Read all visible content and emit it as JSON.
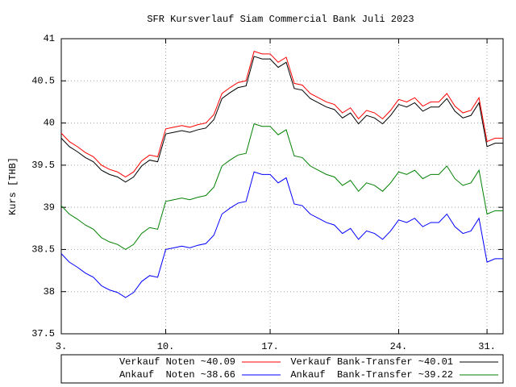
{
  "chart_data": {
    "type": "line",
    "title": "SFR Kursverlauf Siam Commercial Bank Juli 2023",
    "y_label": "Kurs [THB]",
    "x": [
      0,
      2,
      4,
      6,
      8,
      10,
      12,
      14,
      16,
      18,
      20,
      22,
      24,
      26,
      28,
      30,
      32,
      34,
      36,
      38,
      40,
      42,
      44,
      46,
      48,
      50,
      52,
      54,
      56,
      58,
      60,
      62,
      64,
      66,
      68,
      70,
      72,
      74,
      76,
      78,
      80,
      82,
      84,
      86,
      88,
      90,
      92,
      94,
      96,
      98,
      100,
      102,
      104,
      106,
      108,
      110
    ],
    "xlim": [
      0,
      110
    ],
    "xticks": [
      {
        "value": 0,
        "label": "3."
      },
      {
        "value": 26,
        "label": "10."
      },
      {
        "value": 52,
        "label": "17."
      },
      {
        "value": 84,
        "label": "24."
      },
      {
        "value": 106,
        "label": "31."
      }
    ],
    "ylim": [
      37.5,
      41
    ],
    "yticks": [
      37.5,
      38,
      38.5,
      39,
      39.5,
      40,
      40.5,
      41
    ],
    "grid": true,
    "legend": "bottom",
    "series": [
      {
        "name": "Verkauf Noten ~40.09",
        "color": "#ff0000",
        "values": [
          39.88,
          39.78,
          39.72,
          39.65,
          39.6,
          39.5,
          39.45,
          39.42,
          39.36,
          39.42,
          39.55,
          39.62,
          39.6,
          39.93,
          39.95,
          39.97,
          39.95,
          39.98,
          40.0,
          40.1,
          40.35,
          40.42,
          40.48,
          40.5,
          40.85,
          40.82,
          40.82,
          40.72,
          40.78,
          40.47,
          40.45,
          40.35,
          40.3,
          40.25,
          40.22,
          40.12,
          40.18,
          40.05,
          40.15,
          40.12,
          40.05,
          40.15,
          40.28,
          40.25,
          40.3,
          40.2,
          40.25,
          40.25,
          40.35,
          40.2,
          40.12,
          40.15,
          40.3,
          39.78,
          39.82,
          39.82
        ]
      },
      {
        "name": "Verkauf Bank-Transfer ~40.01",
        "color": "#000000",
        "values": [
          39.82,
          39.72,
          39.66,
          39.59,
          39.54,
          39.44,
          39.39,
          39.36,
          39.3,
          39.36,
          39.49,
          39.56,
          39.54,
          39.87,
          39.89,
          39.91,
          39.89,
          39.92,
          39.94,
          40.04,
          40.29,
          40.36,
          40.42,
          40.44,
          40.79,
          40.76,
          40.76,
          40.66,
          40.72,
          40.41,
          40.39,
          40.29,
          40.24,
          40.19,
          40.16,
          40.06,
          40.12,
          39.99,
          40.09,
          40.06,
          39.99,
          40.09,
          40.22,
          40.19,
          40.24,
          40.14,
          40.19,
          40.19,
          40.29,
          40.14,
          40.06,
          40.09,
          40.24,
          39.72,
          39.76,
          39.76
        ]
      },
      {
        "name": "Ankauf  Noten ~38.66",
        "color": "#0000ff",
        "values": [
          38.45,
          38.35,
          38.29,
          38.22,
          38.17,
          38.07,
          38.02,
          37.99,
          37.93,
          37.99,
          38.12,
          38.19,
          38.17,
          38.5,
          38.52,
          38.54,
          38.52,
          38.55,
          38.57,
          38.67,
          38.92,
          38.99,
          39.05,
          39.07,
          39.42,
          39.39,
          39.39,
          39.29,
          39.35,
          39.04,
          39.02,
          38.92,
          38.87,
          38.82,
          38.79,
          38.69,
          38.75,
          38.62,
          38.72,
          38.69,
          38.62,
          38.72,
          38.85,
          38.82,
          38.87,
          38.77,
          38.82,
          38.82,
          38.92,
          38.77,
          38.69,
          38.72,
          38.87,
          38.35,
          38.39,
          38.39
        ]
      },
      {
        "name": "Ankauf  Bank-Transfer ~39.22",
        "color": "#008000",
        "values": [
          39.02,
          38.92,
          38.86,
          38.79,
          38.74,
          38.64,
          38.59,
          38.56,
          38.5,
          38.56,
          38.69,
          38.76,
          38.74,
          39.07,
          39.09,
          39.11,
          39.09,
          39.12,
          39.14,
          39.24,
          39.49,
          39.56,
          39.62,
          39.64,
          39.99,
          39.96,
          39.96,
          39.86,
          39.92,
          39.61,
          39.59,
          39.49,
          39.44,
          39.39,
          39.36,
          39.26,
          39.32,
          39.19,
          39.29,
          39.26,
          39.19,
          39.29,
          39.42,
          39.39,
          39.44,
          39.34,
          39.39,
          39.39,
          39.49,
          39.34,
          39.26,
          39.29,
          39.44,
          38.92,
          38.96,
          38.96
        ]
      }
    ]
  }
}
